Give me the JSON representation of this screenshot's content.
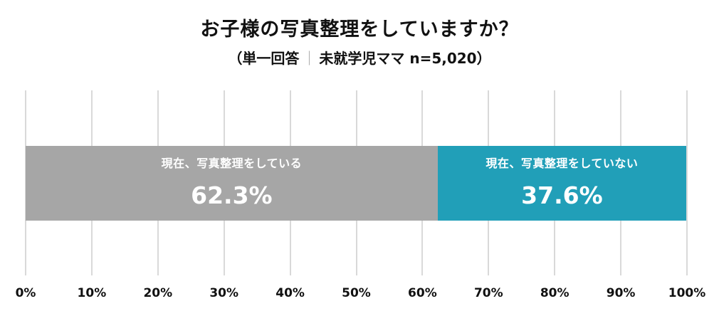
{
  "chart_data": {
    "type": "bar",
    "orientation": "horizontal-stacked-100",
    "title": "お子様の写真整理をしていますか？",
    "subtitle": {
      "left": "（単一回答",
      "separator": "｜",
      "right": "未就学児ママ n=5,020）"
    },
    "xlabel": "",
    "ylabel": "",
    "xlim": [
      0,
      100
    ],
    "grid": true,
    "legend": "none (labels inside bars)",
    "series": [
      {
        "name": "現在、写真整理をしている",
        "value": 62.3,
        "value_label": "62.3%",
        "color": "#a6a6a6"
      },
      {
        "name": "現在、写真整理をしていない",
        "value": 37.6,
        "value_label": "37.6%",
        "color": "#219fb8"
      }
    ],
    "ticks": [
      "0%",
      "10%",
      "20%",
      "30%",
      "40%",
      "50%",
      "60%",
      "70%",
      "80%",
      "90%",
      "100%"
    ]
  }
}
